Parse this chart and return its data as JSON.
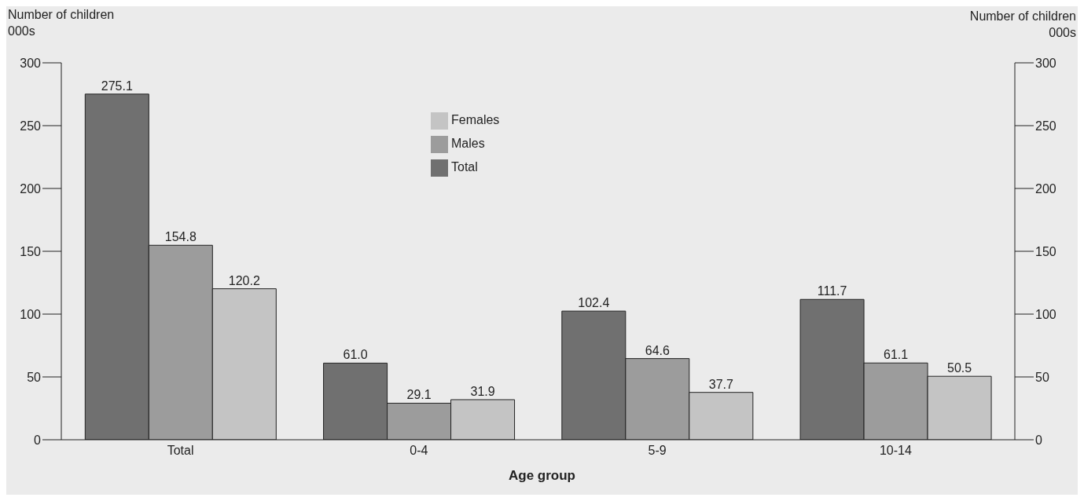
{
  "chart_data": {
    "type": "bar",
    "xlabel": "Age group",
    "ylabel": "Number of children\n000s",
    "y2label": "Number of children\n000s",
    "categories": [
      "Total",
      "0-4",
      "5-9",
      "10-14"
    ],
    "series": [
      {
        "name": "Total",
        "color": "#707070",
        "values": [
          275.1,
          61.0,
          102.4,
          111.7
        ],
        "value_labels": [
          "275.1",
          "61.0",
          "102.4",
          "111.7"
        ]
      },
      {
        "name": "Males",
        "color": "#9c9c9c",
        "values": [
          154.8,
          29.1,
          64.6,
          61.1
        ],
        "value_labels": [
          "154.8",
          "29.1",
          "64.6",
          "61.1"
        ]
      },
      {
        "name": "Females",
        "color": "#c4c4c4",
        "values": [
          120.2,
          31.9,
          37.7,
          50.5
        ],
        "value_labels": [
          "120.2",
          "31.9",
          "37.7",
          "50.5"
        ]
      }
    ],
    "ylim": [
      0,
      300
    ],
    "yticks": [
      0,
      50,
      100,
      150,
      200,
      250,
      300
    ],
    "y2lim": [
      0,
      300
    ],
    "y2ticks": [
      0,
      50,
      100,
      150,
      200,
      250,
      300
    ],
    "legend": "top",
    "grid": false
  }
}
